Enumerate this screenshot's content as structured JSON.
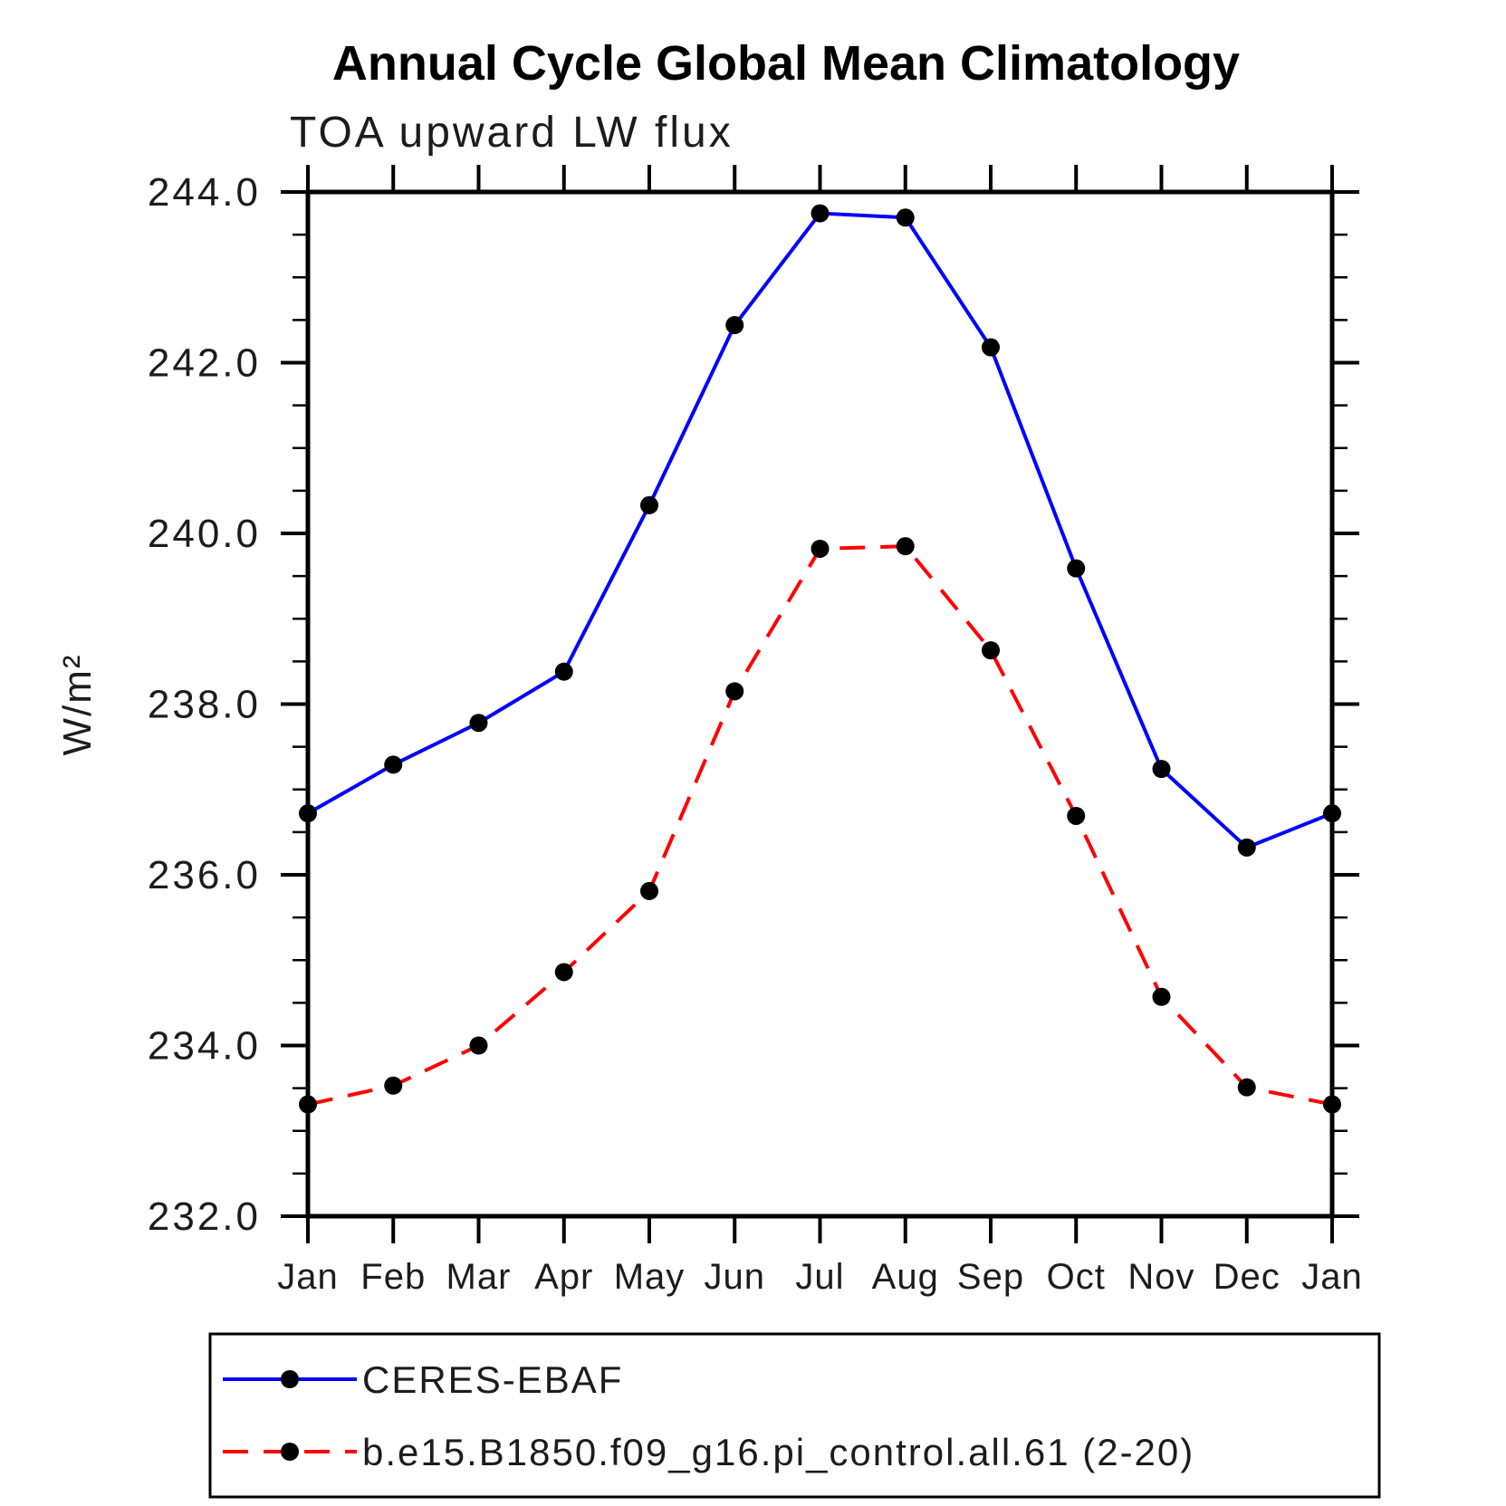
{
  "page": {
    "background": "#ffffff"
  },
  "chart_data": {
    "type": "line",
    "title": "Annual Cycle Global Mean Climatology",
    "subtitle": "TOA upward LW flux",
    "ylabel": "W/m²",
    "xlabel": "",
    "categories": [
      "Jan",
      "Feb",
      "Mar",
      "Apr",
      "May",
      "Jun",
      "Jul",
      "Aug",
      "Sep",
      "Oct",
      "Nov",
      "Dec",
      "Jan"
    ],
    "ylim": [
      232.0,
      244.0
    ],
    "y_major_step": 2.0,
    "y_minor_step": 0.5,
    "y_tick_values": [
      244.0,
      242.0,
      240.0,
      238.0,
      236.0,
      234.0,
      232.0
    ],
    "y_tick_labels": [
      "244.0",
      "242.0",
      "240.0",
      "238.0",
      "236.0",
      "234.0",
      "232.0"
    ],
    "grid": false,
    "legend_position": "bottom",
    "axis_color": "#000000",
    "marker_shape": "circle",
    "series": [
      {
        "name": "CERES-EBAF",
        "color": "#0000ff",
        "style": "solid",
        "marker_color": "#000000",
        "values": [
          236.72,
          237.29,
          237.78,
          238.38,
          240.33,
          242.44,
          243.75,
          243.7,
          242.18,
          239.59,
          237.24,
          236.32,
          236.72
        ]
      },
      {
        "name": "b.e15.B1850.f09_g16.pi_control.all.61 (2-20)",
        "color": "#ff0000",
        "style": "dashed",
        "marker_color": "#000000",
        "values": [
          233.31,
          233.53,
          234.0,
          234.86,
          235.81,
          238.15,
          239.82,
          239.85,
          238.63,
          236.69,
          234.57,
          233.51,
          233.31
        ]
      }
    ]
  }
}
